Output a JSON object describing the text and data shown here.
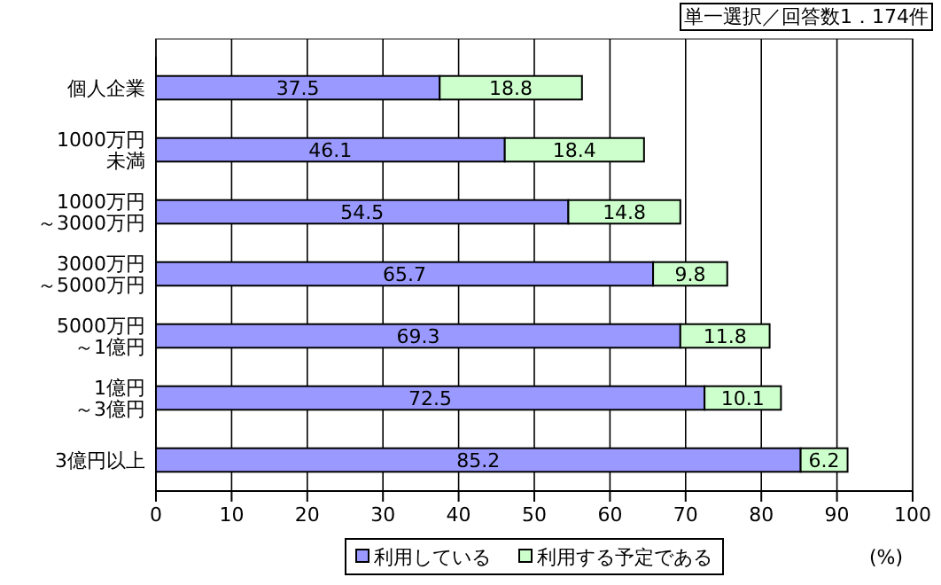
{
  "chart_data": {
    "type": "bar",
    "orientation": "horizontal",
    "stacked": true,
    "categories": [
      "個人企業",
      "1000万円未満",
      "1000万円～3000万円",
      "3000万円～5000万円",
      "5000万円～1億円",
      "1億円～3億円",
      "3億円以上"
    ],
    "series": [
      {
        "name": "利用している",
        "color": "#9999ff",
        "values": [
          37.5,
          46.1,
          54.5,
          65.7,
          69.3,
          72.5,
          85.2
        ]
      },
      {
        "name": "利用する予定である",
        "color": "#ccffcc",
        "values": [
          18.8,
          18.4,
          14.8,
          9.8,
          11.8,
          10.1,
          6.2
        ]
      }
    ],
    "xlim": [
      0,
      100
    ],
    "xticks": [
      0,
      10,
      20,
      30,
      40,
      50,
      60,
      70,
      80,
      90,
      100
    ],
    "xlabel": "(%)",
    "annotations": [
      "単一選択／回答数1．174件"
    ],
    "data_labels": true,
    "grid": "x",
    "legend": "bottom"
  }
}
